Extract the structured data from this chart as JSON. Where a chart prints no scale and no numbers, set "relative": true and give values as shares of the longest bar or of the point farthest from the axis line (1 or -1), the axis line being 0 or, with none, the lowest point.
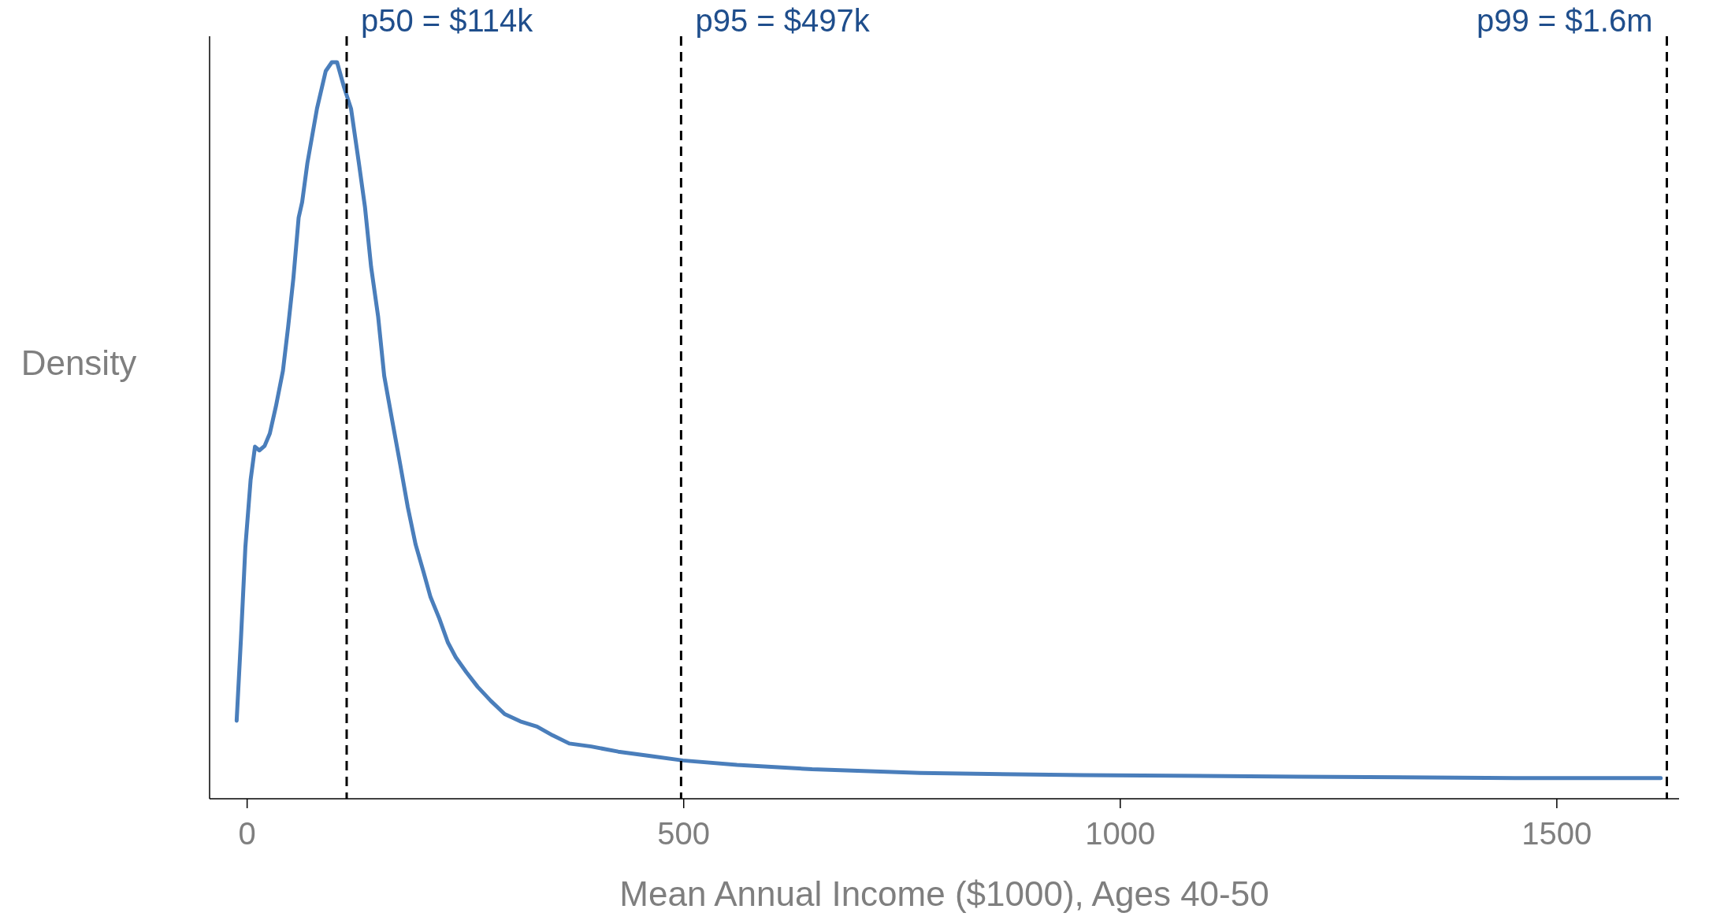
{
  "chart_data": {
    "type": "line",
    "relative": true,
    "xlabel": "Mean Annual Income ($1000), Ages 40-50",
    "ylabel": "Density",
    "xlim": [
      -43,
      1640
    ],
    "xticks": [
      0,
      500,
      1000,
      1500
    ],
    "x": [
      -12,
      -7,
      -2,
      4,
      9,
      14,
      20,
      26,
      33,
      41,
      47,
      53,
      59,
      63,
      69,
      80,
      90,
      97,
      103,
      111,
      119,
      128,
      135,
      142,
      150,
      157,
      167,
      175,
      184,
      193,
      202,
      210,
      220,
      230,
      239,
      251,
      264,
      279,
      295,
      313,
      332,
      350,
      369,
      394,
      425,
      462,
      499,
      561,
      647,
      771,
      957,
      1204,
      1452,
      1619
    ],
    "series": [
      {
        "color": "#4a7ebb",
        "line_style": "solid",
        "values": [
          0.106,
          0.219,
          0.342,
          0.433,
          0.478,
          0.473,
          0.479,
          0.496,
          0.533,
          0.581,
          0.641,
          0.707,
          0.789,
          0.81,
          0.863,
          0.937,
          0.988,
          1.0,
          1.0,
          0.966,
          0.937,
          0.863,
          0.803,
          0.722,
          0.655,
          0.574,
          0.508,
          0.456,
          0.396,
          0.345,
          0.308,
          0.274,
          0.245,
          0.212,
          0.192,
          0.172,
          0.152,
          0.133,
          0.115,
          0.105,
          0.098,
          0.086,
          0.075,
          0.071,
          0.064,
          0.058,
          0.052,
          0.046,
          0.04,
          0.035,
          0.032,
          0.03,
          0.028,
          0.028
        ]
      }
    ],
    "ref_lines": [
      {
        "axis": "x",
        "value": 114,
        "label": "p50 = $114k",
        "color": "#000000",
        "line_style": "dashed"
      },
      {
        "axis": "x",
        "value": 497,
        "label": "p95 = $497k",
        "color": "#000000",
        "line_style": "dashed"
      },
      {
        "axis": "x",
        "value": 1626,
        "label": "p99 = $1.6m",
        "color": "#000000",
        "line_style": "dashed"
      }
    ]
  }
}
